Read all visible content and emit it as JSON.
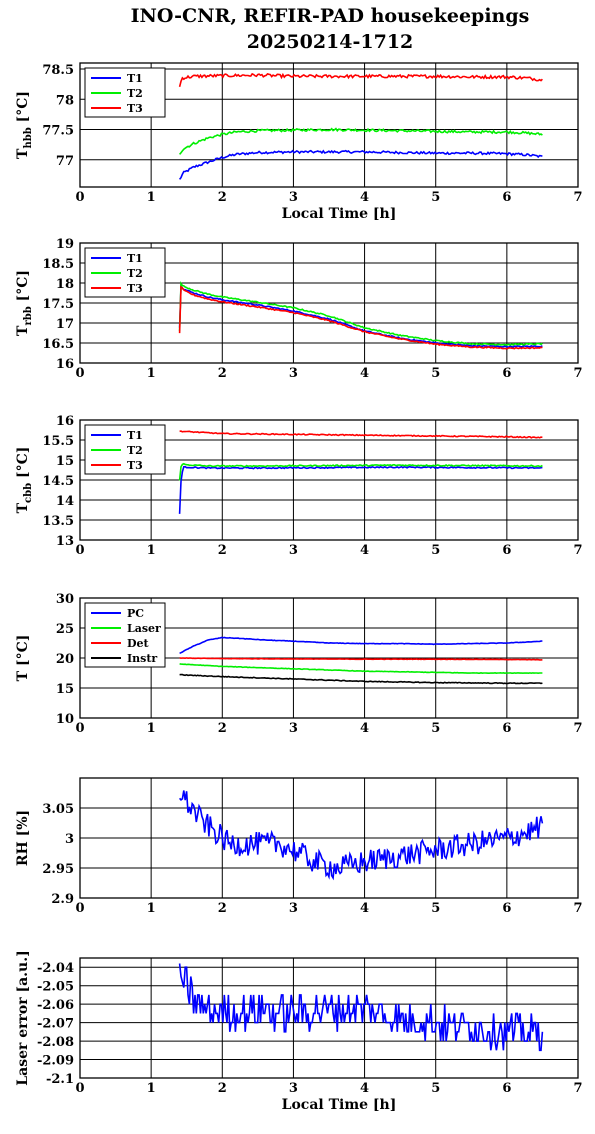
{
  "title": {
    "line1": "INO-CNR, REFIR-PAD housekeepings",
    "line2": "20250214-1712"
  },
  "colors": {
    "blue": "#0000ff",
    "green": "#00ee00",
    "red": "#ff0000",
    "black": "#000000"
  },
  "chart_data": [
    {
      "type": "line",
      "ylabel": "T_hbb [°C]",
      "ylabel_main": "T",
      "ylabel_sub": "hbb",
      "ylabel_unit": " [°C]",
      "xlabel": "Local Time [h]",
      "xlim": [
        0,
        7
      ],
      "ylim": [
        76.55,
        78.6
      ],
      "xticks": [
        0,
        1,
        2,
        3,
        4,
        5,
        6,
        7
      ],
      "yticks": [
        77,
        77.5,
        78,
        78.5
      ],
      "grid": true,
      "legend": "top-left",
      "series": [
        {
          "name": "T1",
          "color": "blue",
          "noise": 0.02,
          "x": [
            1.4,
            1.45,
            1.6,
            1.8,
            2.0,
            2.2,
            2.5,
            3.0,
            3.5,
            4.0,
            4.5,
            5.0,
            5.5,
            6.0,
            6.3,
            6.5
          ],
          "y": [
            76.67,
            76.78,
            76.88,
            76.96,
            77.04,
            77.09,
            77.12,
            77.13,
            77.13,
            77.13,
            77.12,
            77.11,
            77.11,
            77.1,
            77.08,
            77.05
          ]
        },
        {
          "name": "T2",
          "color": "green",
          "noise": 0.02,
          "x": [
            1.4,
            1.45,
            1.6,
            1.8,
            2.0,
            2.2,
            2.5,
            3.0,
            3.5,
            4.0,
            4.5,
            5.0,
            5.5,
            6.0,
            6.3,
            6.5
          ],
          "y": [
            77.1,
            77.18,
            77.27,
            77.36,
            77.42,
            77.46,
            77.48,
            77.49,
            77.5,
            77.49,
            77.48,
            77.47,
            77.46,
            77.46,
            77.44,
            77.42
          ]
        },
        {
          "name": "T3",
          "color": "red",
          "noise": 0.025,
          "x": [
            1.4,
            1.43,
            1.6,
            2.0,
            2.5,
            3.0,
            3.5,
            4.0,
            4.5,
            5.0,
            5.5,
            6.0,
            6.3,
            6.5
          ],
          "y": [
            78.2,
            78.35,
            78.38,
            78.39,
            78.4,
            78.38,
            78.38,
            78.38,
            78.38,
            78.38,
            78.37,
            78.37,
            78.35,
            78.32
          ]
        }
      ]
    },
    {
      "type": "line",
      "ylabel": "T_rbb [°C]",
      "ylabel_main": "T",
      "ylabel_sub": "rbb",
      "ylabel_unit": " [°C]",
      "xlabel": "",
      "xlim": [
        0,
        7
      ],
      "ylim": [
        16,
        19
      ],
      "xticks": [
        0,
        1,
        2,
        3,
        4,
        5,
        6,
        7
      ],
      "yticks": [
        16,
        16.5,
        17,
        17.5,
        18,
        18.5,
        19
      ],
      "grid": true,
      "legend": "top-left",
      "series": [
        {
          "name": "T1",
          "color": "blue",
          "noise": 0.015,
          "x": [
            1.4,
            1.42,
            1.45,
            1.6,
            1.8,
            2.0,
            2.5,
            3.0,
            3.5,
            4.0,
            4.5,
            5.0,
            5.5,
            6.0,
            6.5
          ],
          "y": [
            16.9,
            17.95,
            17.85,
            17.75,
            17.65,
            17.58,
            17.45,
            17.3,
            17.1,
            16.8,
            16.62,
            16.5,
            16.43,
            16.41,
            16.42
          ]
        },
        {
          "name": "T2",
          "color": "green",
          "noise": 0.015,
          "x": [
            1.4,
            1.42,
            1.45,
            1.6,
            1.8,
            2.0,
            2.5,
            3.0,
            3.5,
            4.0,
            4.5,
            5.0,
            5.5,
            6.0,
            6.5
          ],
          "y": [
            16.8,
            18.0,
            17.92,
            17.82,
            17.72,
            17.65,
            17.52,
            17.38,
            17.18,
            16.88,
            16.69,
            16.56,
            16.48,
            16.46,
            16.48
          ]
        },
        {
          "name": "T3",
          "color": "red",
          "noise": 0.015,
          "x": [
            1.4,
            1.42,
            1.45,
            1.6,
            1.8,
            2.0,
            2.5,
            3.0,
            3.5,
            4.0,
            4.5,
            5.0,
            5.5,
            6.0,
            6.5
          ],
          "y": [
            16.75,
            17.93,
            17.82,
            17.7,
            17.6,
            17.53,
            17.4,
            17.26,
            17.06,
            16.78,
            16.6,
            16.47,
            16.4,
            16.37,
            16.38
          ]
        }
      ]
    },
    {
      "type": "line",
      "ylabel": "T_cbb [°C]",
      "ylabel_main": "T",
      "ylabel_sub": "cbb",
      "ylabel_unit": " [°C]",
      "xlabel": "",
      "xlim": [
        0,
        7
      ],
      "ylim": [
        13,
        16
      ],
      "xticks": [
        0,
        1,
        2,
        3,
        4,
        5,
        6,
        7
      ],
      "yticks": [
        13,
        13.5,
        14,
        14.5,
        15,
        15.5,
        16
      ],
      "grid": true,
      "legend": "top-left",
      "series": [
        {
          "name": "T1",
          "color": "blue",
          "noise": 0.015,
          "x": [
            1.4,
            1.42,
            1.45,
            1.5,
            1.8,
            2.5,
            3.5,
            4.5,
            5.5,
            6.5
          ],
          "y": [
            13.65,
            14.5,
            14.82,
            14.82,
            14.8,
            14.8,
            14.81,
            14.82,
            14.81,
            14.8
          ]
        },
        {
          "name": "T2",
          "color": "green",
          "noise": 0.015,
          "x": [
            1.4,
            1.42,
            1.45,
            1.5,
            1.8,
            2.5,
            3.5,
            4.5,
            5.5,
            6.5
          ],
          "y": [
            14.5,
            14.85,
            14.9,
            14.88,
            14.85,
            14.85,
            14.86,
            14.87,
            14.86,
            14.85
          ]
        },
        {
          "name": "T3",
          "color": "red",
          "noise": 0.012,
          "x": [
            1.4,
            2.0,
            3.0,
            4.0,
            5.0,
            6.0,
            6.5
          ],
          "y": [
            15.72,
            15.66,
            15.64,
            15.62,
            15.6,
            15.58,
            15.56
          ]
        }
      ]
    },
    {
      "type": "line",
      "ylabel": "T [°C]",
      "ylabel_main": "T [°C]",
      "ylabel_sub": "",
      "ylabel_unit": "",
      "xlabel": "",
      "xlim": [
        0,
        7
      ],
      "ylim": [
        10,
        30
      ],
      "xticks": [
        0,
        1,
        2,
        3,
        4,
        5,
        6,
        7
      ],
      "yticks": [
        10,
        15,
        20,
        25,
        30
      ],
      "grid": true,
      "legend": "top-left",
      "series": [
        {
          "name": "PC",
          "color": "blue",
          "noise": 0.04,
          "x": [
            1.4,
            1.6,
            1.8,
            2.0,
            2.2,
            2.6,
            3.0,
            3.5,
            4.0,
            4.5,
            5.0,
            5.5,
            6.0,
            6.5
          ],
          "y": [
            20.8,
            22.0,
            23.0,
            23.4,
            23.3,
            23.0,
            22.8,
            22.5,
            22.4,
            22.4,
            22.3,
            22.4,
            22.5,
            22.8
          ]
        },
        {
          "name": "Laser",
          "color": "green",
          "noise": 0.04,
          "x": [
            1.4,
            2.0,
            2.5,
            3.0,
            3.5,
            4.0,
            4.5,
            5.0,
            5.5,
            6.0,
            6.5
          ],
          "y": [
            19.0,
            18.6,
            18.4,
            18.2,
            18.0,
            17.8,
            17.7,
            17.6,
            17.5,
            17.5,
            17.5
          ]
        },
        {
          "name": "Det",
          "color": "red",
          "noise": 0.03,
          "x": [
            1.4,
            2.0,
            3.0,
            4.0,
            5.0,
            6.0,
            6.5
          ],
          "y": [
            20.0,
            19.9,
            19.85,
            19.8,
            19.8,
            19.75,
            19.7
          ]
        },
        {
          "name": "Instr",
          "color": "black",
          "noise": 0.06,
          "x": [
            1.4,
            2.0,
            2.5,
            3.0,
            3.5,
            4.0,
            4.5,
            5.0,
            5.5,
            6.0,
            6.5
          ],
          "y": [
            17.2,
            16.9,
            16.7,
            16.5,
            16.3,
            16.1,
            16.0,
            15.9,
            15.85,
            15.8,
            15.8
          ]
        }
      ]
    },
    {
      "type": "line",
      "ylabel": "RH [%]",
      "ylabel_main": "RH [%]",
      "ylabel_sub": "",
      "ylabel_unit": "",
      "xlabel": "",
      "xlim": [
        0,
        7
      ],
      "ylim": [
        2.9,
        3.1
      ],
      "xticks": [
        0,
        1,
        2,
        3,
        4,
        5,
        6,
        7
      ],
      "yticks": [
        2.9,
        2.95,
        3,
        3.05
      ],
      "grid": true,
      "legend": "",
      "series": [
        {
          "color": "blue",
          "noise": 0.02,
          "x": [
            1.4,
            1.5,
            1.7,
            1.9,
            2.1,
            2.4,
            2.8,
            3.0,
            3.3,
            3.6,
            4.0,
            4.5,
            5.0,
            5.5,
            6.0,
            6.3,
            6.5
          ],
          "y": [
            3.08,
            3.06,
            3.03,
            3.01,
            2.99,
            2.99,
            2.99,
            2.98,
            2.96,
            2.95,
            2.96,
            2.97,
            2.98,
            2.99,
            3.0,
            3.01,
            3.02
          ]
        }
      ]
    },
    {
      "type": "line",
      "ylabel": "Laser error [a.u.]",
      "ylabel_main": "Laser error [a.u.]",
      "ylabel_sub": "",
      "ylabel_unit": "",
      "xlabel": "Local Time [h]",
      "xlim": [
        0,
        7
      ],
      "ylim": [
        -2.1,
        -2.035
      ],
      "xticks": [
        0,
        1,
        2,
        3,
        4,
        5,
        6,
        7
      ],
      "yticks": [
        -2.1,
        -2.09,
        -2.08,
        -2.07,
        -2.06,
        -2.05,
        -2.04
      ],
      "grid": true,
      "legend": "",
      "series": [
        {
          "color": "blue",
          "noise": 0.0,
          "step": 0.005,
          "jump": 0.006,
          "x": [
            1.4,
            1.5,
            1.7,
            2.0,
            2.5,
            3.0,
            3.5,
            4.0,
            4.5,
            5.0,
            5.5,
            6.0,
            6.5
          ],
          "y": [
            -2.038,
            -2.05,
            -2.063,
            -2.065,
            -2.063,
            -2.065,
            -2.063,
            -2.063,
            -2.068,
            -2.07,
            -2.072,
            -2.075,
            -2.075
          ]
        }
      ]
    }
  ]
}
